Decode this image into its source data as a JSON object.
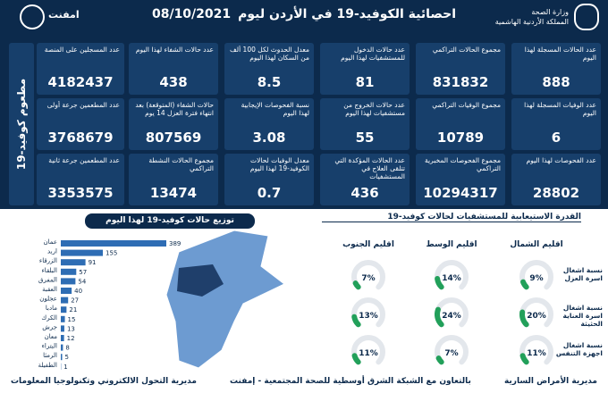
{
  "header": {
    "title": "احصائية الكوفيد-19 في الأردن ليوم",
    "date": "08/10/2021",
    "ministry": "وزارة الصحة",
    "kingdom": "المملكة الأردنية الهاشمية",
    "partner": "امفنت"
  },
  "stats": [
    {
      "label": "عدد الحالات المسجلة لهذا اليوم",
      "value": 888
    },
    {
      "label": "مجموع الحالات التراكمي",
      "value": 831832
    },
    {
      "label": "عدد حالات الدخول للمستشفيات لهذا اليوم",
      "value": 81
    },
    {
      "label": "معدل الحدوث لكل 100 ألف من السكان لهذا اليوم",
      "value": 8.5
    },
    {
      "label": "عدد حالات الشفاء لهذا اليوم",
      "value": 438
    },
    {
      "label": "عدد الوفيات المسجلة لهذا اليوم",
      "value": 6
    },
    {
      "label": "مجموع الوفيات التراكمي",
      "value": 10789
    },
    {
      "label": "عدد حالات الخروج من مستشفيات لهذا اليوم",
      "value": 55
    },
    {
      "label": "نسبة الفحوصات الإيجابية لهذا اليوم",
      "value": 3.08
    },
    {
      "label": "حالات الشفاء (المتوقعة) بعد انتهاء فترة العزل 14 يوم",
      "value": 807569
    },
    {
      "label": "عدد الفحوصات لهذا اليوم",
      "value": 28802
    },
    {
      "label": "مجموع الفحوصات المخبرية التراكمي",
      "value": 10294317
    },
    {
      "label": "عدد الحالات المؤكدة التي تتلقى العلاج في المستشفيات",
      "value": 436
    },
    {
      "label": "معدل الوفيات لحالات الكوفيد-19 لهذا اليوم",
      "value": 0.7
    },
    {
      "label": "مجموع الحالات النشطة التراكمي",
      "value": 13474
    }
  ],
  "vaccination": {
    "title": "مطعوم كوفيد-19",
    "items": [
      {
        "label": "عدد المسجلين على المنصة",
        "value": 4182437
      },
      {
        "label": "عدد المطعمين جرعة أولى",
        "value": 3768679
      },
      {
        "label": "عدد المطعمين جرعة ثانية",
        "value": 3353575
      }
    ]
  },
  "chart_data": [
    {
      "type": "bar",
      "title": "توزيع حالات كوفيد-19 لهذا اليوم",
      "color": "#2e6db4",
      "categories": [
        "عمان",
        "اربد",
        "الزرقاء",
        "البلقاء",
        "المفرق",
        "العقبة",
        "عجلون",
        "مادبا",
        "الكرك",
        "جرش",
        "معان",
        "البتراء",
        "الرمثا",
        "الطفيلة"
      ],
      "values": [
        389,
        155,
        91,
        57,
        54,
        40,
        27,
        21,
        15,
        13,
        12,
        8,
        5,
        1
      ]
    },
    {
      "type": "gauge",
      "title": "القدرة الاستيعابية للمستشفيات لحالات كوفيد-19",
      "color": "#22a05a",
      "ylim": [
        0,
        100
      ],
      "columns": [
        "اقليم الشمال",
        "اقليم الوسط",
        "اقليم الجنوب"
      ],
      "series": [
        {
          "name": "نسبة اشغال اسرة العزل",
          "values": [
            9,
            14,
            7
          ],
          "value_labels": [
            "9%",
            "14%",
            "7%"
          ]
        },
        {
          "name": "نسبة اشغال اسرة العناية الحثيثة",
          "values": [
            20,
            24,
            13
          ],
          "value_labels": [
            "20%",
            "24%",
            "13%"
          ]
        },
        {
          "name": "نسبة اشغال اجهزة التنفس",
          "values": [
            11,
            7,
            11
          ],
          "value_labels": [
            "11%",
            "7%",
            "11%"
          ]
        }
      ]
    }
  ],
  "footer": {
    "right": "مديرية الأمراض السارية",
    "center": "بالتعاون مع الشبكة الشرق أوسطية للصحة المجتمعية - إمفنت",
    "left": "مديرية التحول الالكتروني وتكنولوجيا المعلومات"
  }
}
